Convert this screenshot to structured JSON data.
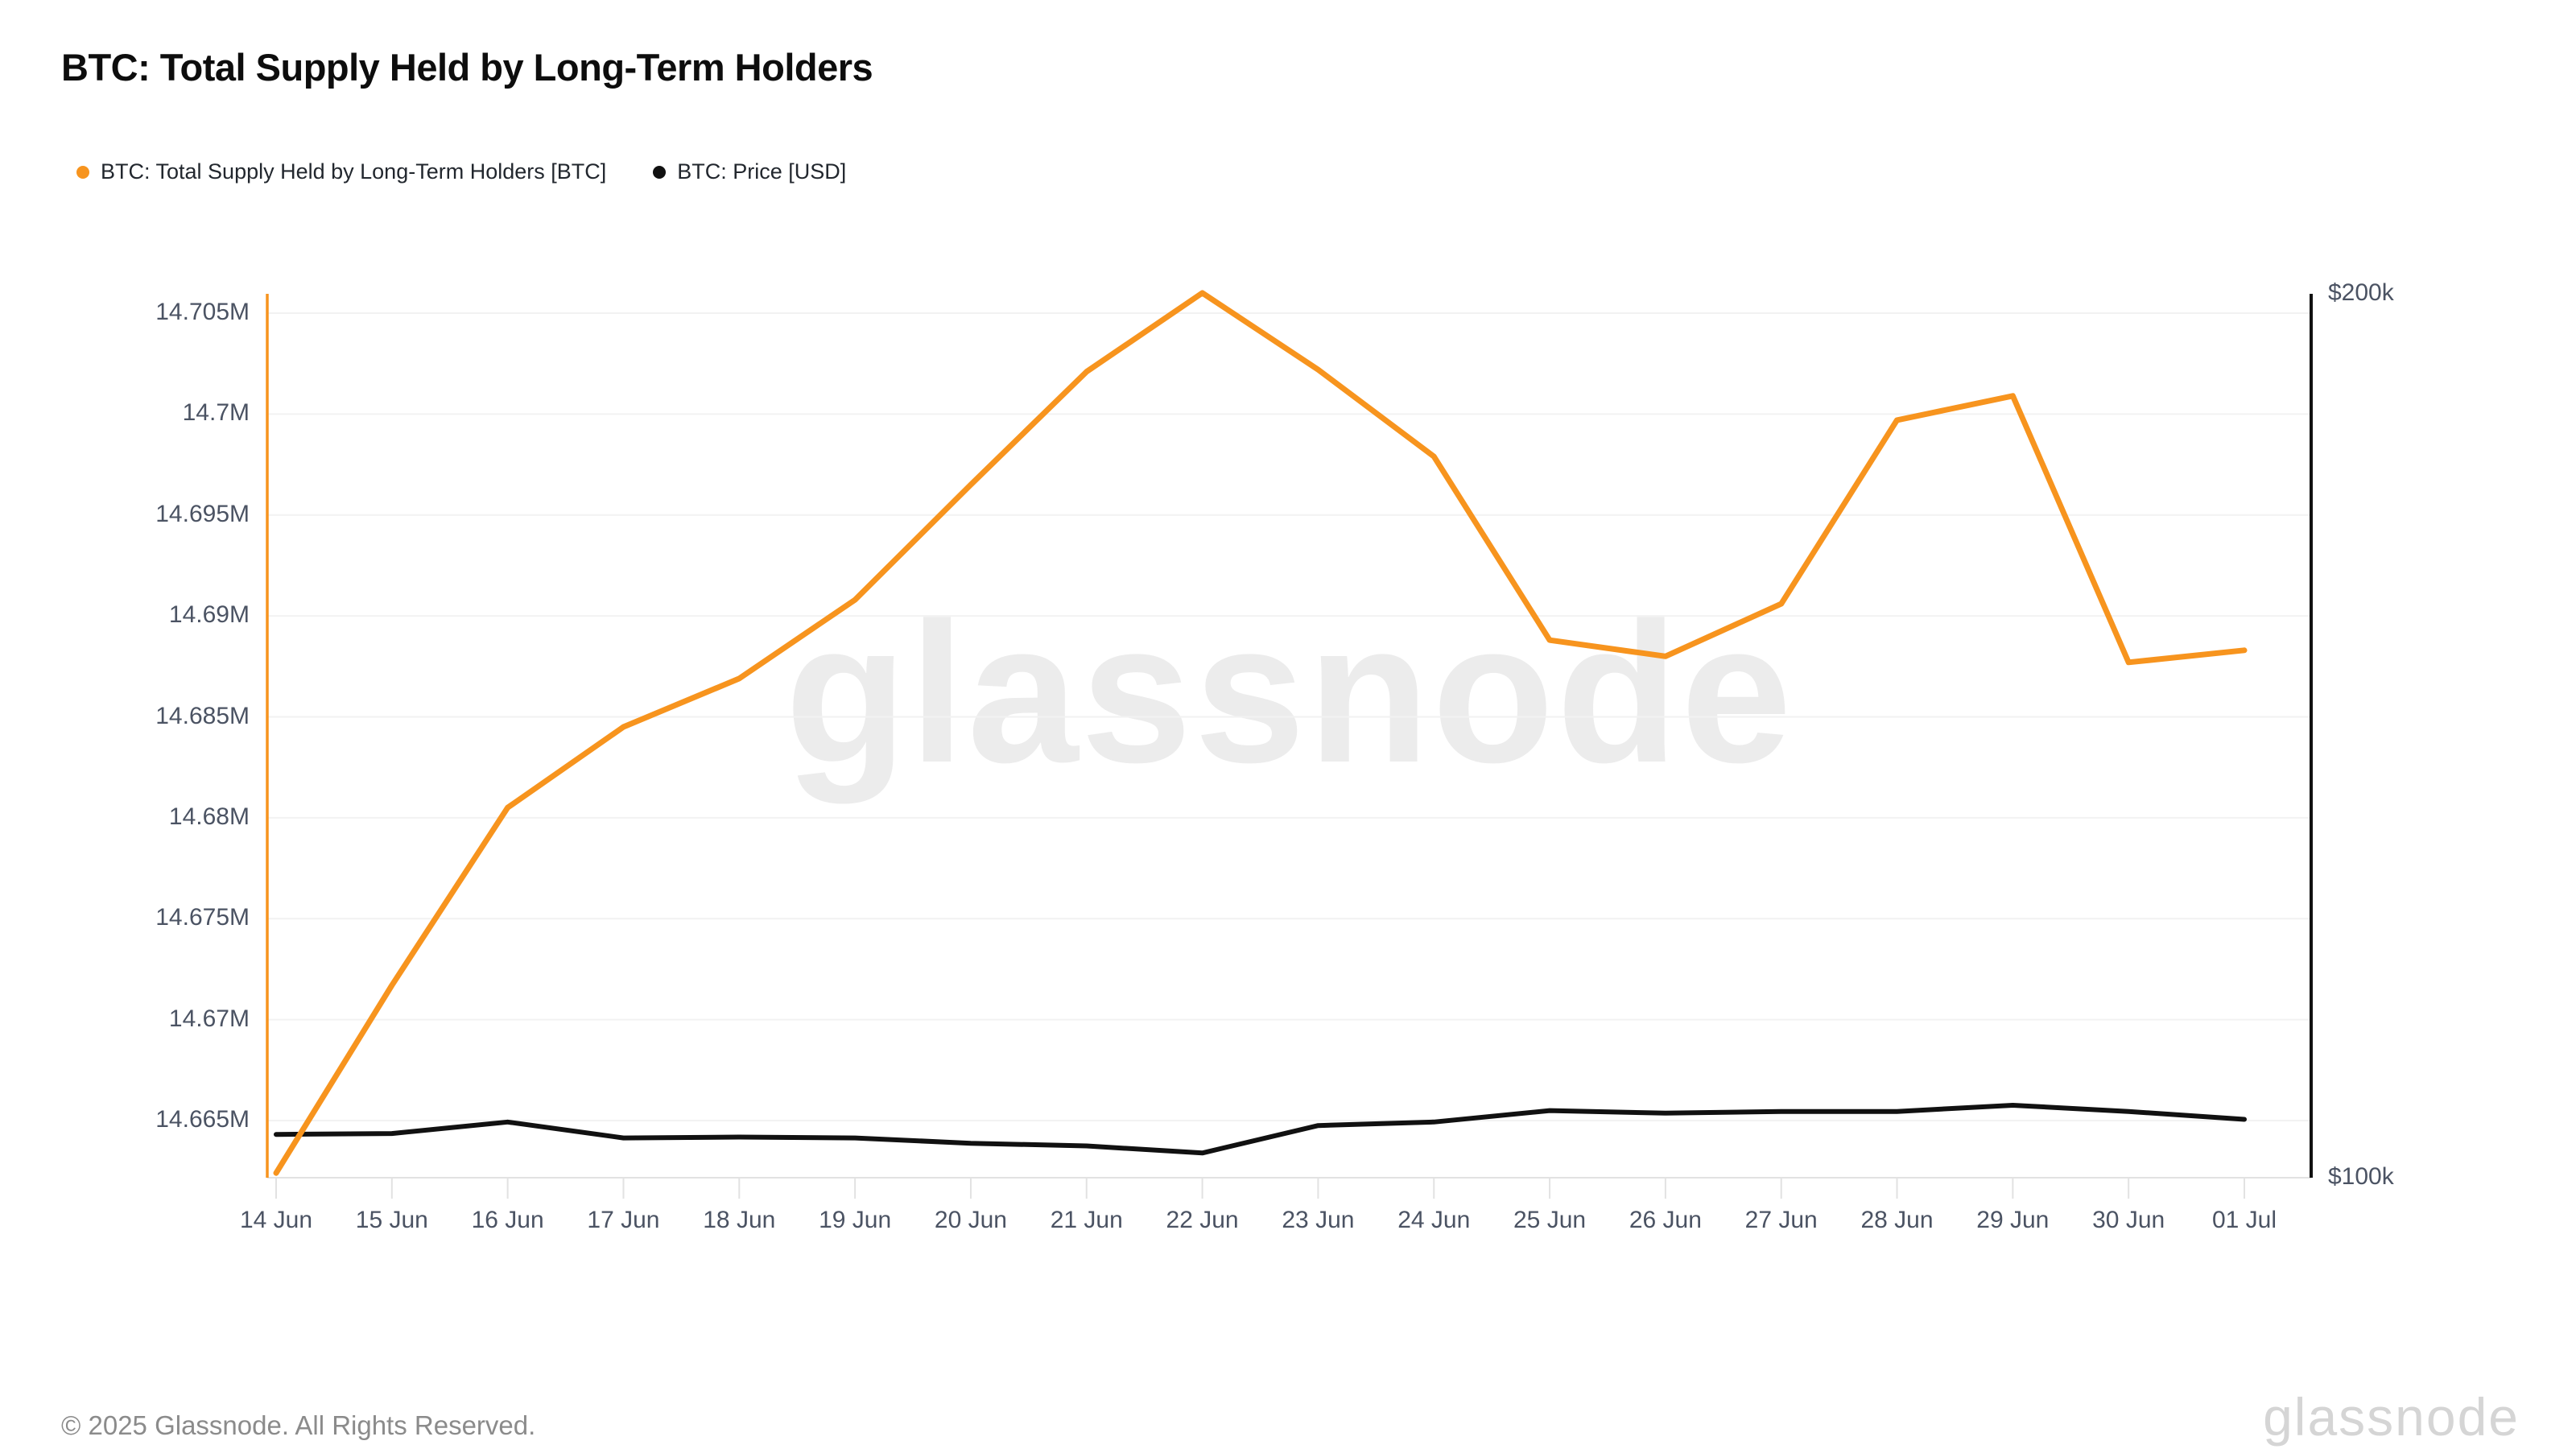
{
  "header": {
    "title": "BTC: Total Supply Held by Long-Term Holders"
  },
  "watermark": "glassnode",
  "footer": {
    "copyright": "© 2025 Glassnode. All Rights Reserved.",
    "brand": "glassnode"
  },
  "colors": {
    "supply_line": "#F7941E",
    "price_line": "#111111",
    "grid": "#f2f2f2",
    "axis_gray": "#e2e2e2",
    "tick_text": "#4b5363",
    "watermark": "#ececec"
  },
  "chart_data": {
    "type": "line",
    "title": "BTC: Total Supply Held by Long-Term Holders",
    "x_labels": [
      "14 Jun",
      "15 Jun",
      "16 Jun",
      "17 Jun",
      "18 Jun",
      "19 Jun",
      "20 Jun",
      "21 Jun",
      "22 Jun",
      "23 Jun",
      "24 Jun",
      "25 Jun",
      "26 Jun",
      "27 Jun",
      "28 Jun",
      "29 Jun",
      "30 Jun",
      "01 Jul"
    ],
    "series": [
      {
        "name": "BTC: Total Supply Held by Long-Term Holders [BTC]",
        "axis": "left",
        "color": "#F7941E",
        "units": "BTC (millions)",
        "values": [
          14.6624,
          14.6717,
          14.6805,
          14.6845,
          14.6869,
          14.6908,
          14.6965,
          14.7021,
          14.706,
          14.7022,
          14.6979,
          14.6888,
          14.688,
          14.6906,
          14.6997,
          14.7009,
          14.6877,
          14.6883
        ]
      },
      {
        "name": "BTC: Price [USD]",
        "axis": "right",
        "color": "#111111",
        "units": "USD (thousands)",
        "values": [
          104.9,
          105.0,
          106.3,
          104.5,
          104.6,
          104.5,
          103.9,
          103.6,
          102.8,
          105.9,
          106.3,
          107.6,
          107.3,
          107.5,
          107.5,
          108.2,
          107.5,
          106.6
        ]
      }
    ],
    "left_axis": {
      "tick_labels": [
        "14.705M",
        "14.7M",
        "14.695M",
        "14.69M",
        "14.685M",
        "14.68M",
        "14.675M",
        "14.67M",
        "14.665M"
      ],
      "tick_values": [
        14.705,
        14.7,
        14.695,
        14.69,
        14.685,
        14.68,
        14.675,
        14.67,
        14.665
      ],
      "color": "#F7941E"
    },
    "right_axis": {
      "labels": [
        "$200k",
        "$100k"
      ],
      "values": [
        200,
        100
      ],
      "color": "#111111"
    },
    "grid": "horizontal",
    "legend_position": "top-left"
  }
}
